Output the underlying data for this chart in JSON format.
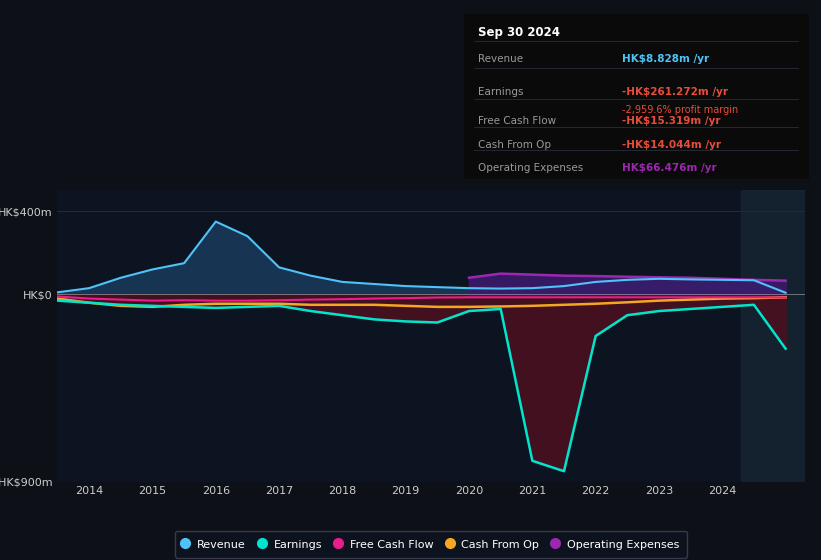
{
  "background_color": "#0d1117",
  "plot_bg_color": "#0d1421",
  "ylim": [
    -900,
    500
  ],
  "yticks": [
    400,
    0,
    -900
  ],
  "ytick_labels": [
    "HK$400m",
    "HK$0",
    "-HK$900m"
  ],
  "xlim": [
    2013.5,
    2025.3
  ],
  "xticks": [
    2014,
    2015,
    2016,
    2017,
    2018,
    2019,
    2020,
    2021,
    2022,
    2023,
    2024
  ],
  "years": [
    2013.5,
    2014,
    2014.5,
    2015,
    2015.5,
    2016,
    2016.5,
    2017,
    2017.5,
    2018,
    2018.5,
    2019,
    2019.5,
    2020,
    2020.5,
    2021,
    2021.5,
    2022,
    2022.5,
    2023,
    2023.5,
    2024,
    2024.5,
    2025.0
  ],
  "revenue": [
    10,
    30,
    80,
    120,
    150,
    350,
    280,
    130,
    90,
    60,
    50,
    40,
    35,
    30,
    28,
    30,
    40,
    60,
    70,
    75,
    72,
    70,
    68,
    8
  ],
  "earnings": [
    -30,
    -40,
    -50,
    -55,
    -60,
    -65,
    -60,
    -55,
    -80,
    -100,
    -120,
    -130,
    -135,
    -80,
    -70,
    -800,
    -850,
    -200,
    -100,
    -80,
    -70,
    -60,
    -50,
    -261
  ],
  "free_cash_flow": [
    -10,
    -20,
    -25,
    -30,
    -28,
    -30,
    -30,
    -28,
    -25,
    -23,
    -20,
    -18,
    -15,
    -14,
    -14,
    -14,
    -14,
    -14,
    -14,
    -14,
    -14,
    -14,
    -14,
    -15
  ],
  "cash_from_op": [
    -20,
    -40,
    -55,
    -60,
    -50,
    -45,
    -45,
    -45,
    -50,
    -50,
    -50,
    -55,
    -60,
    -60,
    -58,
    -55,
    -50,
    -45,
    -38,
    -30,
    -25,
    -20,
    -18,
    -14
  ],
  "operating_expenses": [
    0,
    0,
    0,
    0,
    0,
    0,
    0,
    0,
    0,
    0,
    0,
    0,
    0,
    80,
    100,
    95,
    90,
    88,
    85,
    82,
    80,
    75,
    70,
    66
  ],
  "revenue_color": "#4fc3f7",
  "revenue_fill_color": "#1a3a5c",
  "earnings_color": "#00e5cc",
  "earnings_fill_color": "#4a1020",
  "free_cash_flow_color": "#e91e8c",
  "cash_from_op_color": "#f5a623",
  "operating_expenses_color": "#9c27b0",
  "operating_expenses_fill_color": "#3d1a6e",
  "info_box": {
    "date": "Sep 30 2024",
    "revenue_label": "Revenue",
    "revenue_value": "HK$8.828m",
    "revenue_color": "#4fc3f7",
    "earnings_label": "Earnings",
    "earnings_value": "-HK$261.272m",
    "earnings_color": "#e74c3c",
    "earnings_margin": "-2,959.6%",
    "earnings_margin_color": "#e74c3c",
    "fcf_label": "Free Cash Flow",
    "fcf_value": "-HK$15.319m",
    "fcf_color": "#e74c3c",
    "cashop_label": "Cash From Op",
    "cashop_value": "-HK$14.044m",
    "cashop_color": "#e74c3c",
    "opex_label": "Operating Expenses",
    "opex_value": "HK$66.476m",
    "opex_color": "#9c27b0"
  },
  "legend_items": [
    {
      "label": "Revenue",
      "color": "#4fc3f7"
    },
    {
      "label": "Earnings",
      "color": "#00e5cc"
    },
    {
      "label": "Free Cash Flow",
      "color": "#e91e8c"
    },
    {
      "label": "Cash From Op",
      "color": "#f5a623"
    },
    {
      "label": "Operating Expenses",
      "color": "#9c27b0"
    }
  ]
}
